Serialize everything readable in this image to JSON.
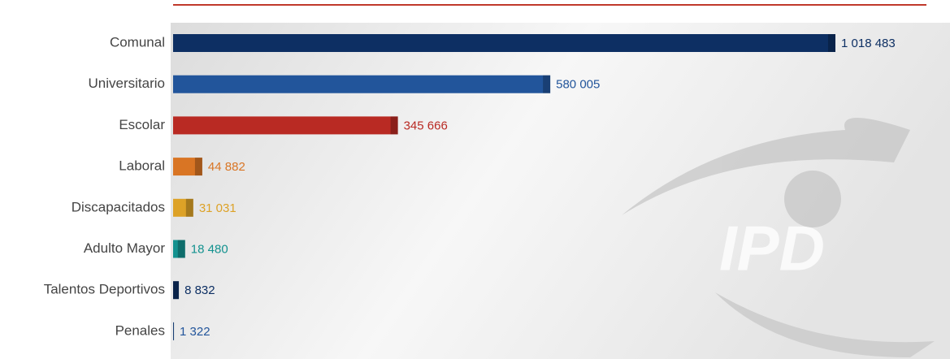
{
  "chart_data": {
    "type": "bar",
    "orientation": "horizontal",
    "watermark": "IPD",
    "categories": [
      "Comunal",
      "Universitario",
      "Escolar",
      "Laboral",
      "Discapacitados",
      "Adulto Mayor",
      "Talentos Deportivos",
      "Penales"
    ],
    "values": [
      1018483,
      580005,
      345666,
      44882,
      31031,
      18480,
      8832,
      1322
    ],
    "value_labels": [
      "1 018 483",
      "580 005",
      "345 666",
      "44 882",
      "31 031",
      "18 480",
      "8 832",
      "1 322"
    ],
    "colors": [
      "#0d2f63",
      "#22559b",
      "#b92a23",
      "#d97524",
      "#dda227",
      "#13928f",
      "#0d2f63",
      "#22559b"
    ]
  }
}
